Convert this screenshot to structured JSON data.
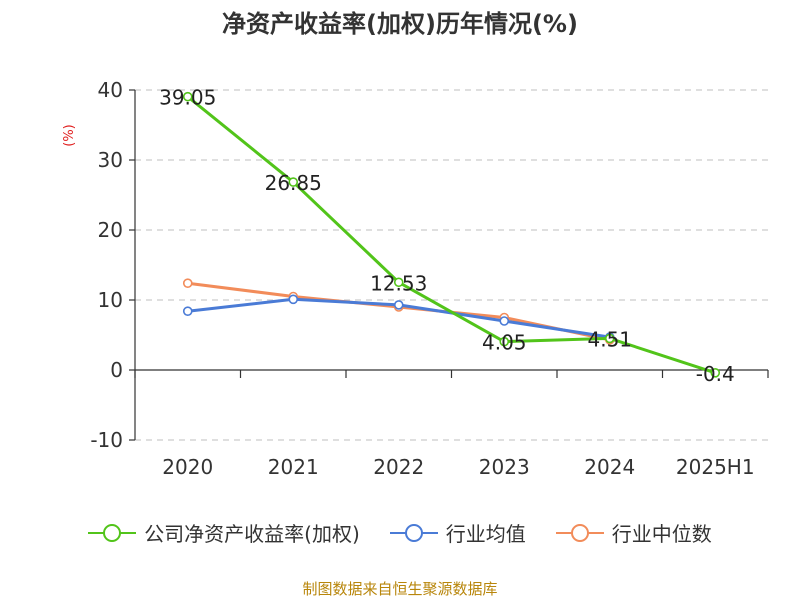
{
  "chart_data": {
    "type": "line",
    "title": "净资产收益率(加权)历年情况(%)",
    "ylabel": "(%)",
    "xlabel": "",
    "categories": [
      "2020",
      "2021",
      "2022",
      "2023",
      "2024",
      "2025H1"
    ],
    "ylim": [
      -10,
      40
    ],
    "yticks": [
      40,
      30,
      20,
      10,
      0,
      -10
    ],
    "grid": true,
    "legend_position": "bottom",
    "series": [
      {
        "name": "公司净资产收益率(加权)",
        "color": "#52c41a",
        "values": [
          39.05,
          26.85,
          12.53,
          4.05,
          4.51,
          -0.4
        ],
        "labels": [
          "39.05",
          "26.85",
          "12.53",
          "4.05",
          "4.51",
          "-0.4"
        ]
      },
      {
        "name": "行业均值",
        "color": "#4a7bd6",
        "values": [
          8.4,
          10.1,
          9.3,
          7.0,
          4.7,
          null
        ]
      },
      {
        "name": "行业中位数",
        "color": "#f28c5a",
        "values": [
          12.4,
          10.5,
          9.0,
          7.5,
          4.3,
          null
        ]
      }
    ]
  },
  "source": "制图数据来自恒生聚源数据库"
}
